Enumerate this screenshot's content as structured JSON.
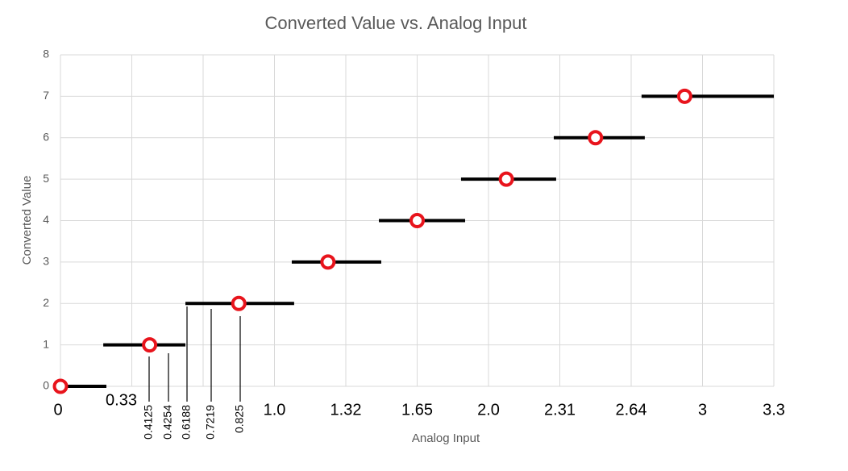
{
  "chart_data": {
    "type": "step",
    "title": "Converted Value vs. Analog Input",
    "x_label": "Analog Input",
    "y_label": "Converted Value",
    "xlim": [
      0,
      3.3
    ],
    "ylim": [
      0,
      8
    ],
    "xticks": [
      0,
      0.33,
      {
        "value": 0.66,
        "label": null
      },
      {
        "value": 0.99,
        "label": "1.0"
      },
      1.32,
      1.65,
      {
        "value": 1.98,
        "label": "2.0"
      },
      2.31,
      2.64,
      {
        "value": 2.97,
        "label": "3"
      },
      3.3
    ],
    "yticks": [
      0,
      1,
      2,
      3,
      4,
      5,
      6,
      7,
      8
    ],
    "grid": true,
    "segments": {
      "color": "#000000",
      "x_start": [
        0,
        0.198,
        0.578,
        1.07,
        1.473,
        1.853,
        2.282,
        2.688
      ],
      "x_end": [
        0.2125,
        0.578,
        1.081,
        1.484,
        1.872,
        2.293,
        2.703,
        3.3
      ],
      "values": [
        0,
        1,
        2,
        3,
        4,
        5,
        6,
        7
      ]
    },
    "markers": {
      "color": "#e8141c",
      "x": [
        0,
        0.4125,
        0.825,
        1.2375,
        1.65,
        2.0625,
        2.475,
        2.8875
      ],
      "values": [
        0,
        1,
        2,
        3,
        4,
        5,
        6,
        7
      ]
    },
    "annotations": [
      "0.4125",
      "0.4254",
      "0.6188",
      "0.7219",
      "0.825"
    ]
  }
}
